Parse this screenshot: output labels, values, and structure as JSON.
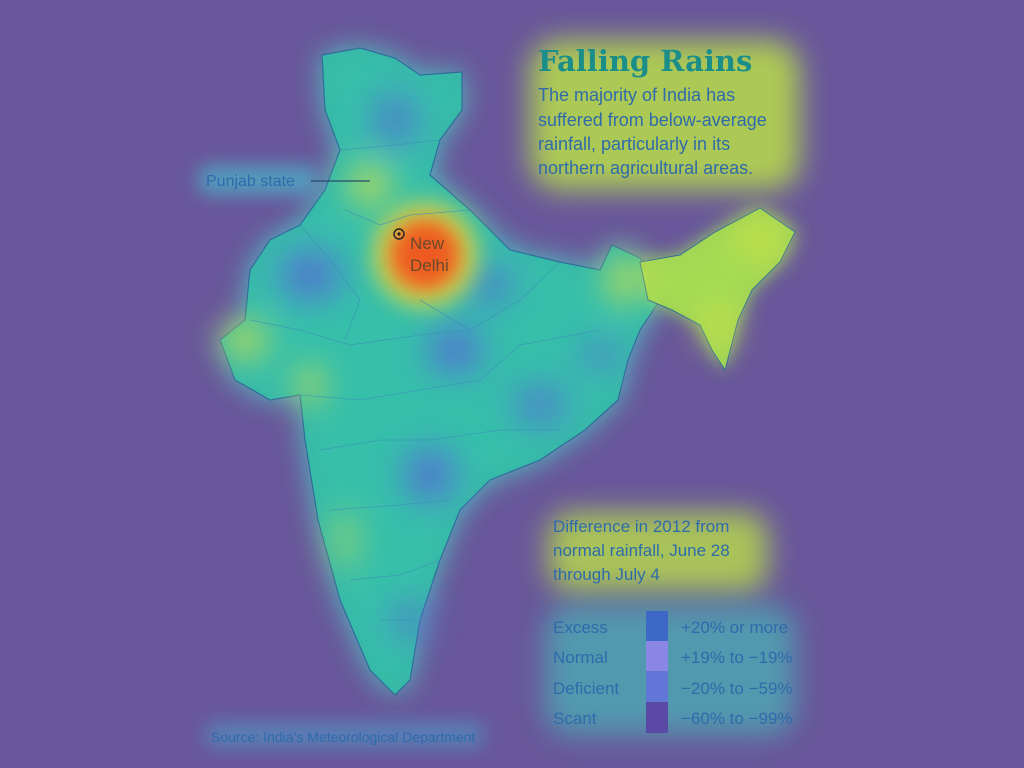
{
  "title": "Falling Rains",
  "description_lines": [
    "The majority of India has",
    "suffered from below-average",
    "rainfall, particularly in its",
    "northern agricultural areas."
  ],
  "map_labels": {
    "punjab": "Punjab state",
    "capital_line1": "New",
    "capital_line2": "Delhi"
  },
  "legend": {
    "heading_lines": [
      "Difference in 2012 from",
      "normal rainfall, June 28",
      "through July 4"
    ],
    "items": [
      {
        "category": "Excess",
        "range": "+20% or more"
      },
      {
        "category": "Normal",
        "range": "+19% to −19%"
      },
      {
        "category": "Deficient",
        "range": "−20% to −59%"
      },
      {
        "category": "Scant",
        "range": "−60% to −99%"
      }
    ]
  },
  "source": "Source: India’s Meteorological Department",
  "colors": {
    "background": "#68579a",
    "heat_low": "#4f7fd8",
    "heat_mid": "#34c8b0",
    "heat_high": "#f2e23c",
    "heat_peak": "#e8361c",
    "title_text": "#1c8e8a",
    "body_text": "#2f6bab",
    "excess_swatch": "#3e68c8",
    "normal_swatch": "#8a86e6",
    "deficient_swatch": "#6276d8",
    "scant_swatch": "#5a4aa6"
  }
}
